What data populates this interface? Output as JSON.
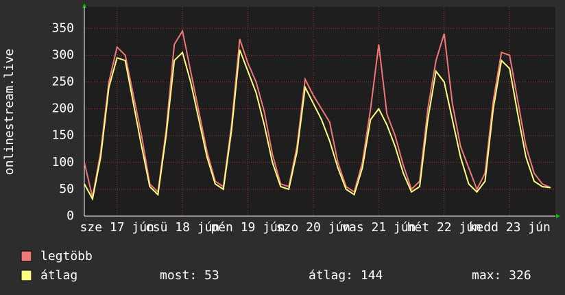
{
  "chart_data": {
    "type": "line",
    "y_label": "onlinestream.live",
    "xlim": [
      16.5,
      23.7
    ],
    "xticks": [
      {
        "value": 17,
        "label": "sze 17 jún"
      },
      {
        "value": 18,
        "label": "csü 18 jún"
      },
      {
        "value": 19,
        "label": "pén 19 jún"
      },
      {
        "value": 20,
        "label": "szo 20 jún"
      },
      {
        "value": 21,
        "label": "vas 21 jún"
      },
      {
        "value": 22,
        "label": "hét 22 jún"
      },
      {
        "value": 23,
        "label": "kedd 23 jún"
      }
    ],
    "ylim": [
      0,
      390
    ],
    "yticks": [
      0,
      50,
      100,
      150,
      200,
      250,
      300,
      350
    ],
    "grid": true,
    "x": [
      16.5,
      16.625,
      16.75,
      16.875,
      17,
      17.125,
      17.25,
      17.375,
      17.5,
      17.625,
      17.75,
      17.875,
      18,
      18.125,
      18.25,
      18.375,
      18.5,
      18.625,
      18.75,
      18.875,
      19,
      19.125,
      19.25,
      19.375,
      19.5,
      19.625,
      19.75,
      19.875,
      20,
      20.125,
      20.25,
      20.375,
      20.5,
      20.625,
      20.75,
      20.875,
      21,
      21.125,
      21.25,
      21.375,
      21.5,
      21.625,
      21.75,
      21.875,
      22,
      22.125,
      22.25,
      22.375,
      22.5,
      22.625,
      22.75,
      22.875,
      23,
      23.125,
      23.25,
      23.375,
      23.5,
      23.625
    ],
    "series": [
      {
        "name": "legtöbb",
        "color": "#f07878",
        "values": [
          100,
          35,
          120,
          250,
          315,
          300,
          225,
          150,
          60,
          45,
          160,
          320,
          345,
          270,
          195,
          120,
          65,
          55,
          170,
          330,
          285,
          250,
          195,
          115,
          60,
          55,
          130,
          255,
          225,
          200,
          175,
          100,
          55,
          45,
          100,
          200,
          320,
          190,
          150,
          95,
          50,
          65,
          200,
          290,
          340,
          210,
          130,
          90,
          50,
          80,
          215,
          305,
          300,
          215,
          130,
          80,
          60,
          53
        ]
      },
      {
        "name": "átlag",
        "color": "#ffff80",
        "values": [
          60,
          32,
          110,
          240,
          295,
          290,
          210,
          130,
          55,
          40,
          150,
          290,
          305,
          250,
          180,
          110,
          60,
          50,
          160,
          310,
          270,
          230,
          170,
          100,
          55,
          50,
          120,
          240,
          210,
          180,
          140,
          90,
          50,
          40,
          90,
          180,
          200,
          170,
          130,
          80,
          45,
          55,
          180,
          270,
          250,
          180,
          110,
          60,
          45,
          65,
          200,
          290,
          275,
          190,
          110,
          65,
          55,
          53
        ]
      }
    ],
    "stats": [
      "most: 53",
      "átlag: 144",
      "max: 326"
    ]
  }
}
